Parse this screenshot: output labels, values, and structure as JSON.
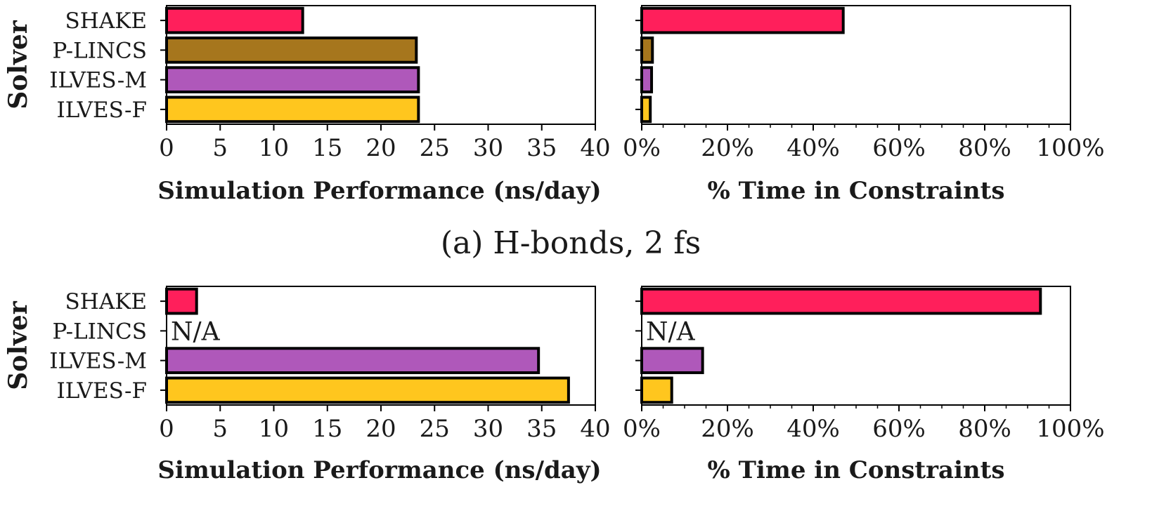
{
  "caption_a": "(a) H-bonds, 2 fs",
  "categories": [
    "SHAKE",
    "P-LINCS",
    "ILVES-M",
    "ILVES-F"
  ],
  "colors": {
    "SHAKE": "#ff1f5b",
    "P-LINCS": "#a6761d",
    "ILVES-M": "#af58ba",
    "ILVES-F": "#ffc61e"
  },
  "na_text": "N/A",
  "chart_data": [
    {
      "type": "bar",
      "orientation": "horizontal",
      "ylabel": "Solver",
      "xlabel": "Simulation Performance (ns/day)",
      "categories": [
        "SHAKE",
        "P-LINCS",
        "ILVES-M",
        "ILVES-F"
      ],
      "values": [
        12.7,
        23.3,
        23.5,
        23.5
      ],
      "xlim": [
        0,
        40
      ],
      "xticks": [
        0,
        5,
        10,
        15,
        20,
        25,
        30,
        35,
        40
      ],
      "xtick_labels": [
        "0",
        "5",
        "10",
        "15",
        "20",
        "25",
        "30",
        "35",
        "40"
      ]
    },
    {
      "type": "bar",
      "orientation": "horizontal",
      "xlabel": "% Time in Constraints",
      "categories": [
        "SHAKE",
        "P-LINCS",
        "ILVES-M",
        "ILVES-F"
      ],
      "values": [
        47,
        2.5,
        2.3,
        2.0
      ],
      "xlim": [
        0,
        100
      ],
      "xticks": [
        0,
        20,
        40,
        60,
        80,
        100
      ],
      "xtick_labels": [
        "0%",
        "20%",
        "40%",
        "60%",
        "80%",
        "100%"
      ]
    },
    {
      "type": "bar",
      "orientation": "horizontal",
      "ylabel": "Solver",
      "xlabel": "Simulation Performance (ns/day)",
      "categories": [
        "SHAKE",
        "P-LINCS",
        "ILVES-M",
        "ILVES-F"
      ],
      "values": [
        2.8,
        null,
        34.7,
        37.5
      ],
      "missing_label": "N/A",
      "xlim": [
        0,
        40
      ],
      "xticks": [
        0,
        5,
        10,
        15,
        20,
        25,
        30,
        35,
        40
      ],
      "xtick_labels": [
        "0",
        "5",
        "10",
        "15",
        "20",
        "25",
        "30",
        "35",
        "40"
      ]
    },
    {
      "type": "bar",
      "orientation": "horizontal",
      "xlabel": "% Time in Constraints",
      "categories": [
        "SHAKE",
        "P-LINCS",
        "ILVES-M",
        "ILVES-F"
      ],
      "values": [
        93,
        null,
        14.2,
        7.0
      ],
      "missing_label": "N/A",
      "xlim": [
        0,
        100
      ],
      "xticks": [
        0,
        20,
        40,
        60,
        80,
        100
      ],
      "xtick_labels": [
        "0%",
        "20%",
        "40%",
        "60%",
        "80%",
        "100%"
      ]
    }
  ]
}
